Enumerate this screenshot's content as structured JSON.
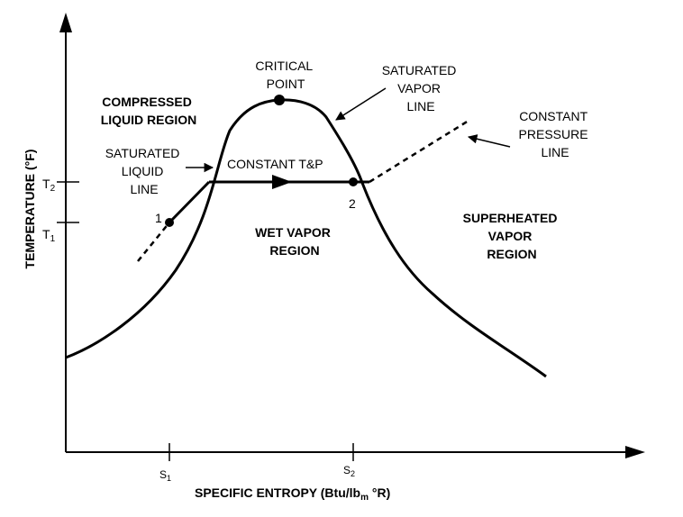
{
  "diagram": {
    "axes": {
      "x_label": "SPECIFIC ENTROPY (Btu/lb",
      "x_label_sub": "m",
      "x_label_tail": " °R)",
      "y_label": "TEMPERATURE (°F)",
      "x_ticks": [
        {
          "base": "S",
          "sub": "1"
        },
        {
          "base": "S",
          "sub": "2"
        }
      ],
      "y_ticks": [
        {
          "base": "T",
          "sub": "2"
        },
        {
          "base": "T",
          "sub": "1"
        }
      ]
    },
    "labels": {
      "critical_point": [
        "CRITICAL",
        "POINT"
      ],
      "saturated_vapor_line": [
        "SATURATED",
        "VAPOR",
        "LINE"
      ],
      "constant_pressure_line": [
        "CONSTANT",
        "PRESSURE",
        "LINE"
      ],
      "compressed_liquid_region": [
        "COMPRESSED",
        "LIQUID REGION"
      ],
      "saturated_liquid_line": [
        "SATURATED",
        "LIQUID",
        "LINE"
      ],
      "constant_tp": "CONSTANT T&P",
      "wet_vapor_region": [
        "WET VAPOR",
        "REGION"
      ],
      "superheated_vapor_region": [
        "SUPERHEATED",
        "VAPOR",
        "REGION"
      ],
      "point_1": "1",
      "point_2": "2"
    }
  }
}
